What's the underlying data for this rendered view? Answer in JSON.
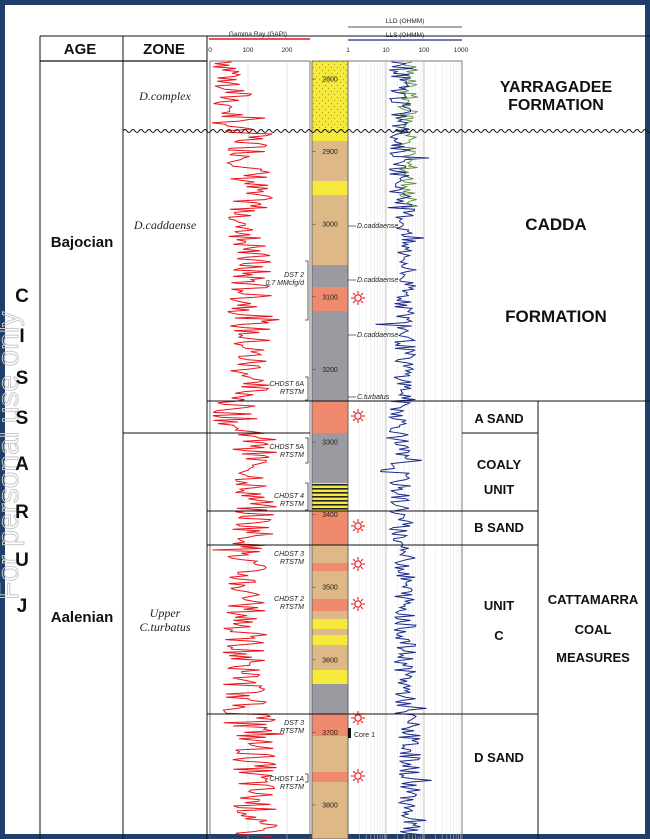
{
  "header": {
    "age": "AGE",
    "zone": "ZONE",
    "gamma_title": "Gamma Ray (GAPI)",
    "gamma_ticks": [
      "0",
      "100",
      "200"
    ],
    "lld_title": "LLD (OHMM)",
    "lls_title": "LLS (OHMM)",
    "res_ticks": [
      "1",
      "10",
      "100",
      "1000"
    ]
  },
  "period": {
    "letters": [
      "J",
      "U",
      "R",
      "A",
      "S",
      "S",
      "I",
      "C"
    ]
  },
  "ages": [
    {
      "label": "Bajocian"
    },
    {
      "label": "Aalenian"
    }
  ],
  "zones": [
    {
      "label": "D.complex"
    },
    {
      "label": "D.caddaense"
    },
    {
      "label_line1": "Upper",
      "label_line2": "C.turbatus"
    }
  ],
  "depth_labels": [
    "2800",
    "2900",
    "3000",
    "3100",
    "3200",
    "3300",
    "3400",
    "3500",
    "3600",
    "3700",
    "3800"
  ],
  "tests": [
    {
      "line1": "DST 2",
      "line2": "0.7 MMcfg/d"
    },
    {
      "line1": "CHDST 6A",
      "line2": "RTSTM"
    },
    {
      "line1": "CHDST 5A",
      "line2": "RTSTM"
    },
    {
      "line1": "CHDST 4",
      "line2": "RTSTM"
    },
    {
      "line1": "CHDST 3",
      "line2": "RTSTM"
    },
    {
      "line1": "CHDST 2",
      "line2": "RTSTM"
    },
    {
      "line1": "DST 3",
      "line2": "RTSTM"
    },
    {
      "line1": "CHDST 1A",
      "line2": "RTSTM"
    }
  ],
  "biostrat_picks": [
    "D.caddaense",
    "D.caddaense",
    "D.caddaense",
    "C.turbatus"
  ],
  "core_label": "Core 1",
  "formations": {
    "yarragadee_1": "YARRAGADEE",
    "yarragadee_2": "FORMATION",
    "cadda_1": "CADDA",
    "cadda_2": "FORMATION",
    "a_sand": "A SAND",
    "coaly_1": "COALY",
    "coaly_2": "UNIT",
    "b_sand": "B SAND",
    "unit_c_1": "UNIT",
    "unit_c_2": "C",
    "cattamarra_1": "CATTAMARRA",
    "cattamarra_2": "COAL",
    "cattamarra_3": "MEASURES",
    "d_sand": "D SAND"
  },
  "watermark": "For personal use only",
  "colors": {
    "frame": "#1f3f6b",
    "gamma": "#e8141b",
    "lls": "#1b2a8c",
    "lld": "#5a8a3a",
    "sand_yellow": "#f6ea3c",
    "tan": "#deb887",
    "shale_grey": "#9a9aa0",
    "gas_sand": "#f08a6e",
    "gas_symbol": "#e8141b"
  }
}
